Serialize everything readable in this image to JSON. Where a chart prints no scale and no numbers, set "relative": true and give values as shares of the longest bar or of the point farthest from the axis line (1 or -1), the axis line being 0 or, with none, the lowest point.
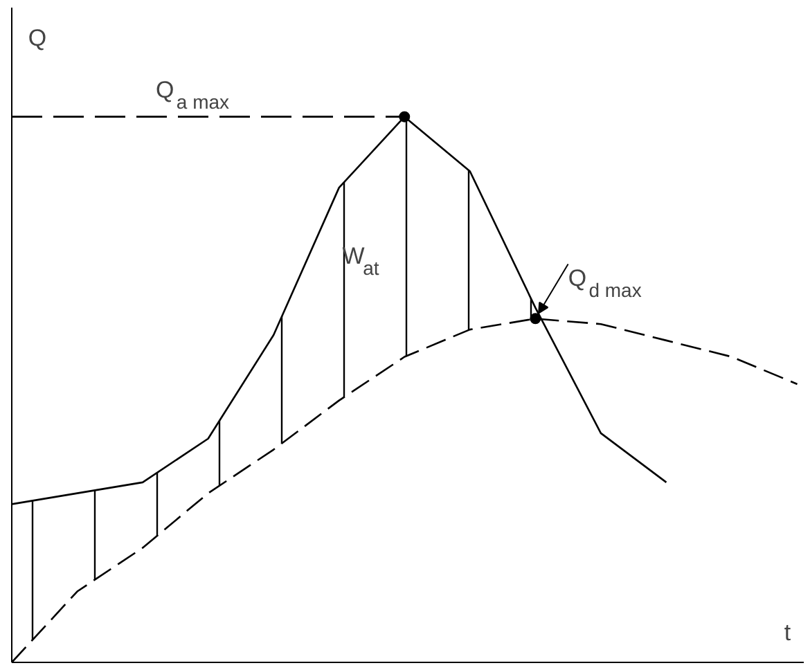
{
  "chart_data": {
    "type": "line",
    "relative": true,
    "xlabel": "t",
    "ylabel": "Q",
    "categories": [
      null,
      null,
      null,
      null,
      null,
      null,
      null,
      null,
      null,
      null,
      null,
      null,
      null
    ],
    "series": [
      {
        "color": "#000000",
        "line_style": "solid",
        "values": [
          0.29,
          0.31,
          0.33,
          0.41,
          0.6,
          0.87,
          1,
          0.9,
          0.65,
          0.42,
          0.33,
          null,
          null
        ],
        "lower": [
          0.0,
          0.13,
          0.21,
          0.31,
          0.39,
          0.48,
          0.56,
          0.61,
          0.63,
          null,
          null,
          null,
          null
        ],
        "upper": [
          0.29,
          0.31,
          0.33,
          0.41,
          0.6,
          0.87,
          1,
          0.9,
          0.65,
          null,
          null,
          null,
          null
        ]
      },
      {
        "color": "#000000",
        "line_style": "dashed",
        "values": [
          0.0,
          0.13,
          0.21,
          0.31,
          0.39,
          0.48,
          0.56,
          0.61,
          0.63,
          0.62,
          0.59,
          0.56,
          0.51
        ]
      }
    ],
    "annotations": [
      "Q$_{a max}$",
      "Q$_{d max}$",
      "W$_{at}$"
    ],
    "grid": false
  }
}
